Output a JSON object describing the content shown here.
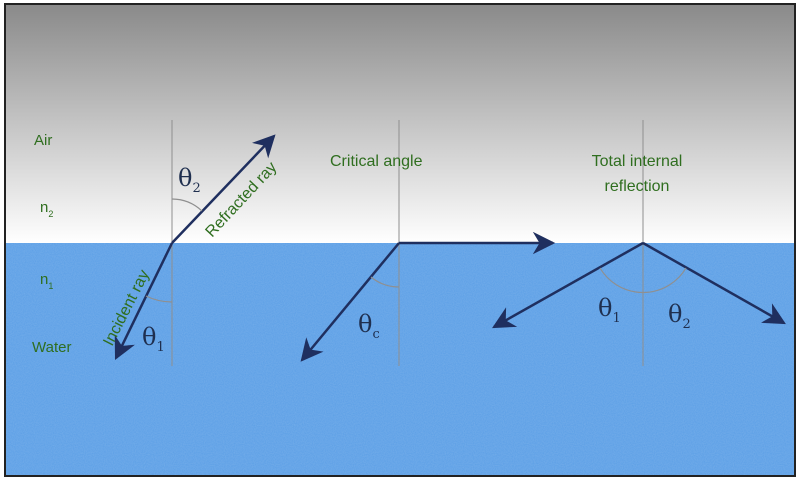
{
  "colors": {
    "air_top": "#8a8a8a",
    "air_bottom": "#ffffff",
    "water": "#5a9ee6",
    "water_light": "#6aaaf0",
    "ray": "#1f2f5f",
    "label_green": "#2f6e1f",
    "normal": "#8f8f8f"
  },
  "media": {
    "air": "Air",
    "n2_base": "n",
    "n2_sub": "2",
    "n1_base": "n",
    "n1_sub": "1",
    "water": "Water"
  },
  "refraction": {
    "refracted_label": "Refracted ray",
    "incident_label": "Incident ray",
    "theta2_base": "θ",
    "theta2_sub": "2",
    "theta1_base": "θ",
    "theta1_sub": "1"
  },
  "critical": {
    "title": "Critical angle",
    "theta_c_base": "θ",
    "theta_c_sub": "c"
  },
  "tir": {
    "title_line1": "Total internal",
    "title_line2": "reflection",
    "theta1_base": "θ",
    "theta1_sub": "1",
    "theta2_base": "θ",
    "theta2_sub": "2"
  }
}
